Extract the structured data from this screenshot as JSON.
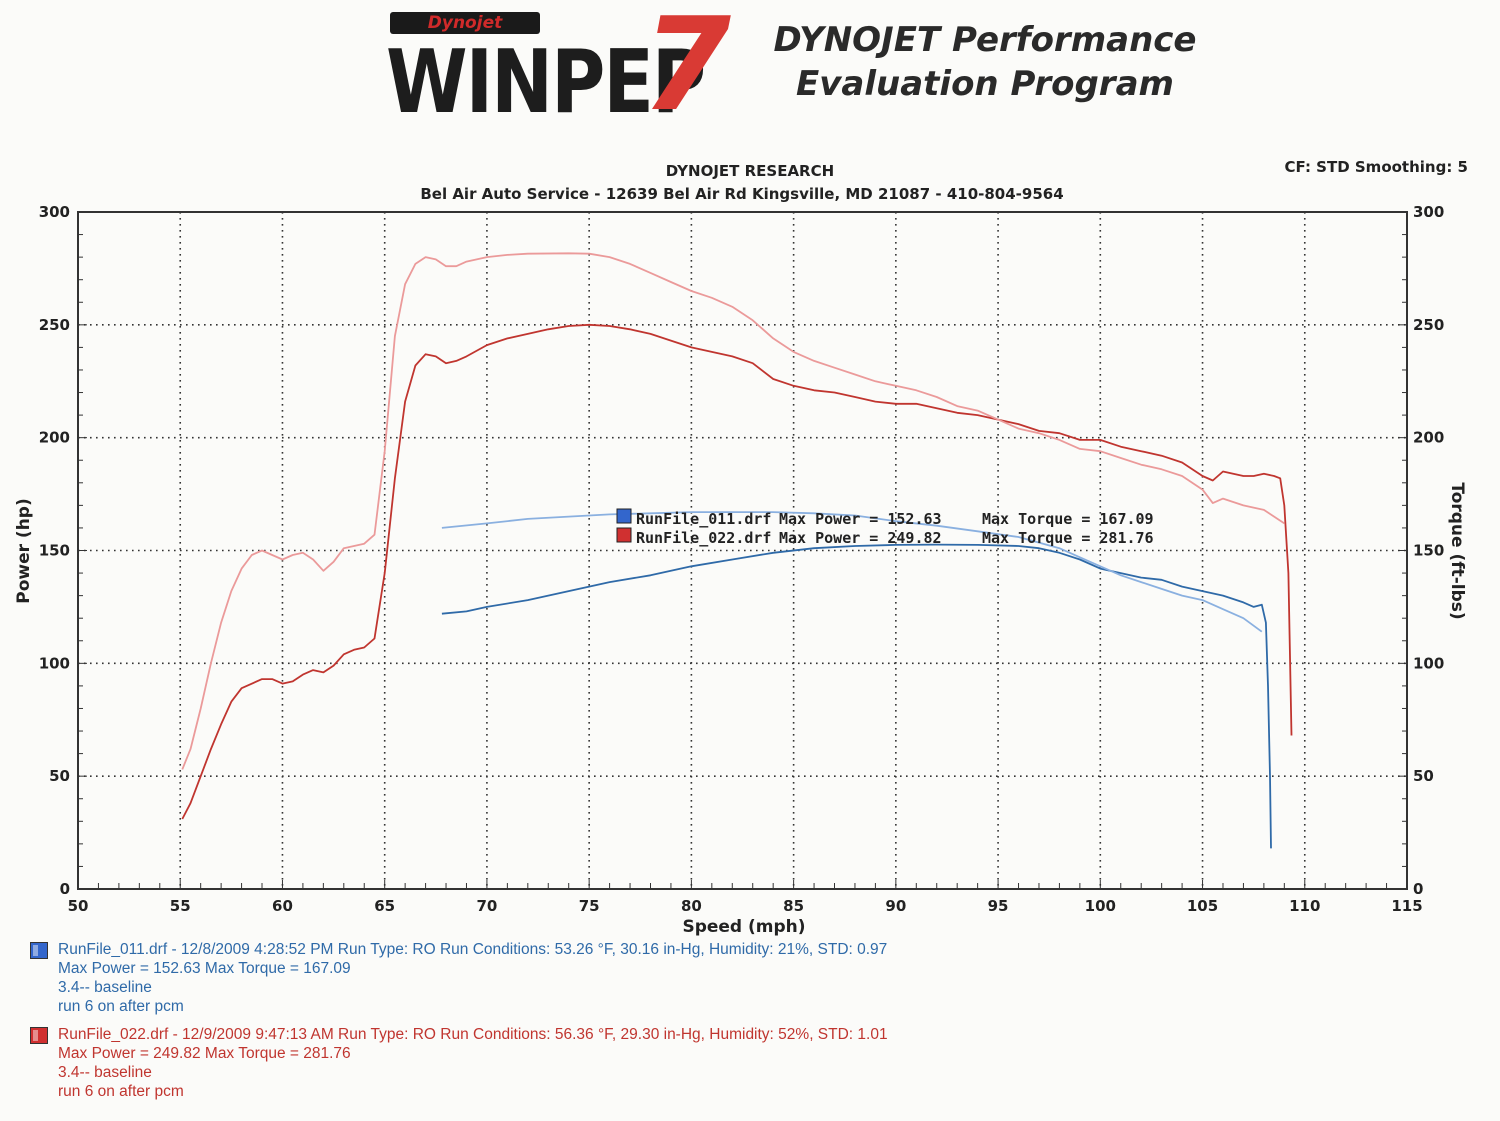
{
  "header": {
    "logo_brand": "Dynojet",
    "logo_word": "WINPEP",
    "logo_number": "7",
    "title_line1": "DYNOJET Performance",
    "title_line2": "Evaluation Program",
    "research": "DYNOJET RESEARCH",
    "address": "Bel Air Auto Service - 12639 Bel Air Rd Kingsville, MD 21087 - 410-804-9564",
    "cf": "CF: STD  Smoothing: 5"
  },
  "legend": [
    {
      "file": "RunFile_011.drf",
      "power": "Max Power = 152.63",
      "torque": "Max Torque = 167.09",
      "color": "#3366cc"
    },
    {
      "file": "RunFile_022.drf",
      "power": "Max Power = 249.82",
      "torque": "Max Torque = 281.76",
      "color": "#d03030"
    }
  ],
  "runs": [
    {
      "line1": "RunFile_011.drf - 12/8/2009 4:28:52 PM  Run Type: RO  Run Conditions: 53.26 °F, 30.16 in-Hg,  Humidity:  21%, STD: 0.97",
      "line2": "Max Power = 152.63  Max Torque = 167.09",
      "line3": "3.4-- baseline",
      "line4": "run 6 on after pcm",
      "color": "#2f6aa8",
      "swatch": "#3366cc"
    },
    {
      "line1": "RunFile_022.drf - 12/9/2009 9:47:13 AM  Run Type: RO  Run Conditions: 56.36 °F, 29.30 in-Hg,  Humidity:  52%, STD: 1.01",
      "line2": "Max Power = 249.82  Max Torque = 281.76",
      "line3": "3.4-- baseline",
      "line4": "run 6 on after pcm",
      "color": "#c0352f",
      "swatch": "#d03030"
    }
  ],
  "chart_data": {
    "type": "line",
    "xlabel": "Speed (mph)",
    "ylabel": "Power (hp)",
    "y2label": "Torque (ft-lbs)",
    "xlim": [
      50,
      115
    ],
    "ylim": [
      0,
      300
    ],
    "y2lim": [
      0,
      300
    ],
    "x_ticks": [
      50,
      55,
      60,
      65,
      70,
      75,
      80,
      85,
      90,
      95,
      100,
      105,
      110,
      115
    ],
    "y_ticks": [
      0,
      50,
      100,
      150,
      200,
      250,
      300
    ],
    "grid": true,
    "series": [
      {
        "name": "RunFile_011.drf",
        "color": "#2f6aa8",
        "points": [
          [
            67.8,
            122
          ],
          [
            69,
            123
          ],
          [
            70,
            125
          ],
          [
            72,
            128
          ],
          [
            74,
            132
          ],
          [
            76,
            136
          ],
          [
            78,
            139
          ],
          [
            80,
            143
          ],
          [
            82,
            146
          ],
          [
            84,
            149
          ],
          [
            86,
            151
          ],
          [
            88,
            152
          ],
          [
            90,
            152.5
          ],
          [
            92,
            152.6
          ],
          [
            94,
            152.5
          ],
          [
            96,
            152
          ],
          [
            97,
            151
          ],
          [
            98,
            149
          ],
          [
            99,
            146
          ],
          [
            100,
            142
          ],
          [
            101,
            140
          ],
          [
            102,
            138
          ],
          [
            103,
            137
          ],
          [
            104,
            134
          ],
          [
            105,
            132
          ],
          [
            106,
            130
          ],
          [
            107,
            127
          ],
          [
            107.5,
            125
          ],
          [
            107.9,
            126
          ],
          [
            108.1,
            118
          ],
          [
            108.2,
            90
          ],
          [
            108.3,
            50
          ],
          [
            108.35,
            18
          ]
        ]
      },
      {
        "name": "RunFile_011.drf",
        "color": "#8ab0e0",
        "points": [
          [
            67.8,
            160
          ],
          [
            70,
            162
          ],
          [
            72,
            164
          ],
          [
            74,
            165
          ],
          [
            76,
            166
          ],
          [
            78,
            166.5
          ],
          [
            80,
            167
          ],
          [
            84,
            167
          ],
          [
            86,
            166.5
          ],
          [
            88,
            165.5
          ],
          [
            90,
            163
          ],
          [
            92,
            161
          ],
          [
            94,
            158.5
          ],
          [
            96,
            156
          ],
          [
            98,
            151
          ],
          [
            99,
            147
          ],
          [
            100,
            143
          ],
          [
            101,
            139
          ],
          [
            102,
            136
          ],
          [
            103,
            133
          ],
          [
            104,
            130
          ],
          [
            105,
            128
          ],
          [
            106,
            124
          ],
          [
            107,
            120
          ],
          [
            107.9,
            114
          ]
        ]
      },
      {
        "name": "RunFile_022.drf",
        "color": "#c0352f",
        "points": [
          [
            55.1,
            31
          ],
          [
            55.5,
            38
          ],
          [
            56,
            50
          ],
          [
            56.5,
            62
          ],
          [
            57,
            73
          ],
          [
            57.5,
            83
          ],
          [
            58,
            89
          ],
          [
            59,
            93
          ],
          [
            59.5,
            93
          ],
          [
            60,
            91
          ],
          [
            60.5,
            92
          ],
          [
            61,
            95
          ],
          [
            61.5,
            97
          ],
          [
            62,
            96
          ],
          [
            62.5,
            99
          ],
          [
            63,
            104
          ],
          [
            63.5,
            106
          ],
          [
            64,
            107
          ],
          [
            64.5,
            111
          ],
          [
            65,
            140
          ],
          [
            65.5,
            182
          ],
          [
            66,
            216
          ],
          [
            66.5,
            232
          ],
          [
            67,
            237
          ],
          [
            67.5,
            236
          ],
          [
            68,
            233
          ],
          [
            68.5,
            234
          ],
          [
            69,
            236
          ],
          [
            70,
            241
          ],
          [
            71,
            244
          ],
          [
            72,
            246
          ],
          [
            73,
            248
          ],
          [
            74,
            249.5
          ],
          [
            75,
            250
          ],
          [
            76,
            249.5
          ],
          [
            77,
            248
          ],
          [
            78,
            246
          ],
          [
            79,
            243
          ],
          [
            80,
            240
          ],
          [
            81,
            238
          ],
          [
            82,
            236
          ],
          [
            83,
            233
          ],
          [
            84,
            226
          ],
          [
            85,
            223
          ],
          [
            86,
            221
          ],
          [
            87,
            220
          ],
          [
            88,
            218
          ],
          [
            89,
            216
          ],
          [
            90,
            215
          ],
          [
            91,
            215
          ],
          [
            92,
            213
          ],
          [
            93,
            211
          ],
          [
            94,
            210
          ],
          [
            95,
            208
          ],
          [
            96,
            206
          ],
          [
            97,
            203
          ],
          [
            98,
            202
          ],
          [
            99,
            199
          ],
          [
            100,
            199
          ],
          [
            101,
            196
          ],
          [
            102,
            194
          ],
          [
            103,
            192
          ],
          [
            104,
            189
          ],
          [
            105,
            183
          ],
          [
            105.5,
            181
          ],
          [
            106,
            185
          ],
          [
            106.5,
            184
          ],
          [
            107,
            183
          ],
          [
            107.5,
            183
          ],
          [
            108,
            184
          ],
          [
            108.5,
            183
          ],
          [
            108.8,
            182
          ],
          [
            109,
            170
          ],
          [
            109.2,
            140
          ],
          [
            109.35,
            68
          ]
        ]
      },
      {
        "name": "RunFile_022.drf",
        "color": "#eb9a9a",
        "points": [
          [
            55.1,
            53
          ],
          [
            55.5,
            62
          ],
          [
            56,
            80
          ],
          [
            56.5,
            100
          ],
          [
            57,
            118
          ],
          [
            57.5,
            132
          ],
          [
            58,
            142
          ],
          [
            58.5,
            148
          ],
          [
            59,
            150
          ],
          [
            59.5,
            148
          ],
          [
            60,
            146
          ],
          [
            60.5,
            148
          ],
          [
            61,
            149
          ],
          [
            61.5,
            146
          ],
          [
            62,
            141
          ],
          [
            62.5,
            145
          ],
          [
            63,
            151
          ],
          [
            63.5,
            152
          ],
          [
            64,
            153
          ],
          [
            64.5,
            157
          ],
          [
            65,
            194
          ],
          [
            65.5,
            245
          ],
          [
            66,
            268
          ],
          [
            66.5,
            277
          ],
          [
            67,
            280
          ],
          [
            67.5,
            279
          ],
          [
            68,
            276
          ],
          [
            68.5,
            276
          ],
          [
            69,
            278
          ],
          [
            70,
            280
          ],
          [
            71,
            281
          ],
          [
            72,
            281.5
          ],
          [
            74,
            281.7
          ],
          [
            75,
            281.5
          ],
          [
            76,
            280
          ],
          [
            77,
            277
          ],
          [
            78,
            273
          ],
          [
            79,
            269
          ],
          [
            80,
            265
          ],
          [
            81,
            262
          ],
          [
            82,
            258
          ],
          [
            83,
            252
          ],
          [
            84,
            244
          ],
          [
            85,
            238
          ],
          [
            86,
            234
          ],
          [
            87,
            231
          ],
          [
            88,
            228
          ],
          [
            89,
            225
          ],
          [
            90,
            223
          ],
          [
            91,
            221
          ],
          [
            92,
            218
          ],
          [
            93,
            214
          ],
          [
            94,
            212
          ],
          [
            95,
            208
          ],
          [
            96,
            204
          ],
          [
            97,
            202
          ],
          [
            98,
            199
          ],
          [
            99,
            195
          ],
          [
            100,
            194
          ],
          [
            101,
            191
          ],
          [
            102,
            188
          ],
          [
            103,
            186
          ],
          [
            104,
            183
          ],
          [
            105,
            177
          ],
          [
            105.5,
            171
          ],
          [
            106,
            173
          ],
          [
            107,
            170
          ],
          [
            108,
            168
          ],
          [
            108.5,
            165
          ],
          [
            109,
            162
          ]
        ]
      }
    ]
  }
}
